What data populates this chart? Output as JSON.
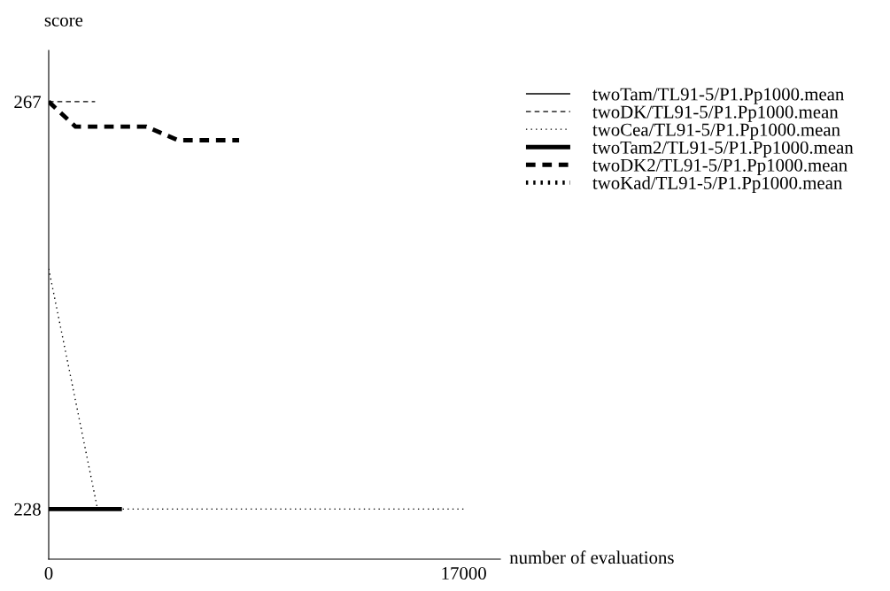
{
  "chart_data": {
    "type": "line",
    "title": "score",
    "xlabel": "number of evaluations",
    "xlim": [
      0,
      18500
    ],
    "ylim": [
      223.2,
      271.9
    ],
    "xticks": [
      0,
      17000
    ],
    "yticks": [
      228,
      267
    ],
    "grid": false,
    "legend": "top right",
    "series": [
      {
        "name": "twoTam/TL91-5/P1.Pp1000.mean",
        "color": "#000000",
        "line_style": "solid"
      },
      {
        "name": "twoDK/TL91-5/P1.Pp1000.mean",
        "color": "#000000",
        "line_style": "dashed",
        "x": [
          0,
          1900
        ],
        "values": [
          267,
          267
        ]
      },
      {
        "name": "twoCea/TL91-5/P1.Pp1000.mean",
        "color": "#000000",
        "line_style": "dotted",
        "x": [
          0,
          2000,
          17000
        ],
        "values": [
          251,
          228,
          228
        ]
      },
      {
        "name": "twoTam2/TL91-5/P1.Pp1000.mean",
        "color": "#000000",
        "line_style": "solid",
        "x": [
          0,
          3000
        ],
        "values": [
          228,
          228
        ]
      },
      {
        "name": "twoDK2/TL91-5/P1.Pp1000.mean",
        "color": "#000000",
        "line_style": "dashed",
        "x": [
          0,
          1100,
          4000,
          5300,
          7800
        ],
        "values": [
          267,
          264.6,
          264.6,
          263.3,
          263.3
        ]
      },
      {
        "name": "twoKad/TL91-5/P1.Pp1000.mean",
        "color": "#000000",
        "line_style": "dotted"
      }
    ]
  }
}
